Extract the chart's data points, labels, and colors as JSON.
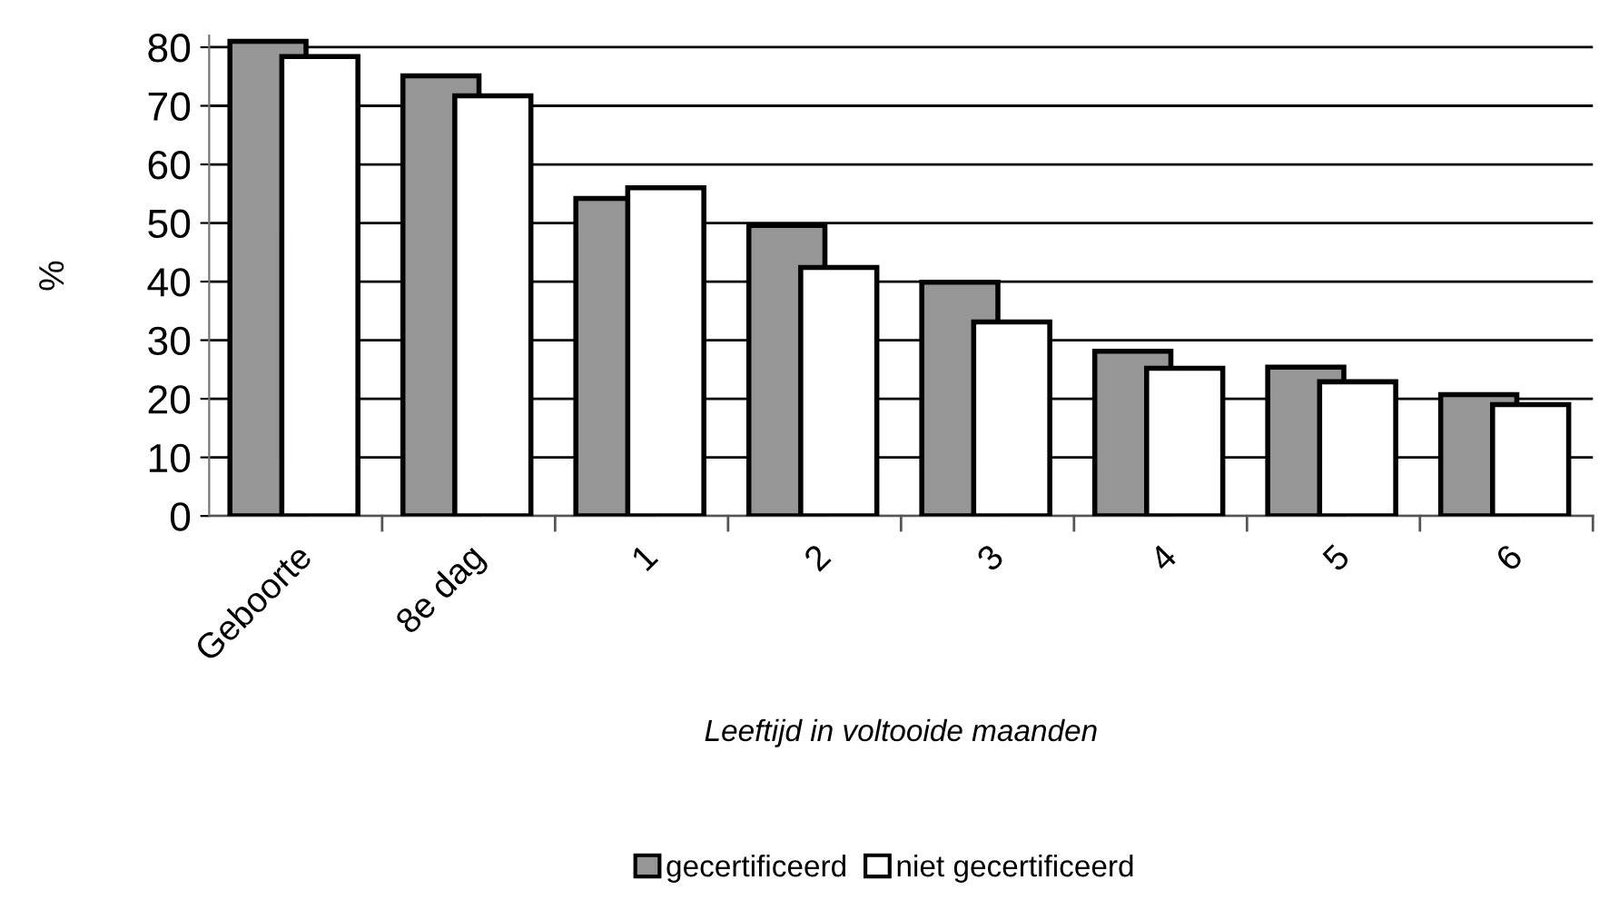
{
  "chart_data": {
    "type": "bar",
    "ylabel": "%",
    "xlabel": "Leeftijd in voltooide maanden",
    "categories": [
      "Geboorte",
      "8e dag",
      "1",
      "2",
      "3",
      "4",
      "5",
      "6"
    ],
    "series": [
      {
        "name": "gecertificeerd",
        "color": "#969696",
        "values": [
          81.0,
          75.1,
          54.2,
          49.6,
          39.9,
          28.1,
          25.4,
          20.7
        ]
      },
      {
        "name": "niet gecertificeerd",
        "color": "#ffffff",
        "values": [
          78.4,
          71.7,
          56.0,
          42.4,
          33.1,
          25.2,
          22.9,
          19.0
        ]
      }
    ],
    "ylim": [
      0,
      82
    ],
    "yticks": [
      0,
      10,
      20,
      30,
      40,
      50,
      60,
      70,
      80
    ],
    "grid": "y",
    "legend": "bottom"
  }
}
